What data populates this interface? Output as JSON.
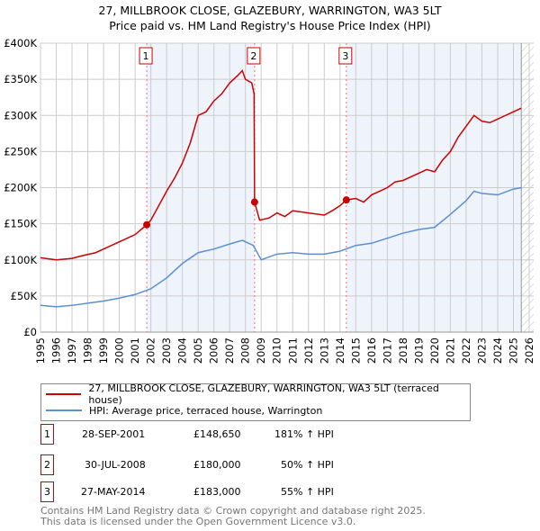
{
  "chart_data": {
    "type": "line",
    "title": "27, MILLBROOK CLOSE, GLAZEBURY, WARRINGTON, WA3 5LT",
    "subtitle": "Price paid vs. HM Land Registry's House Price Index (HPI)",
    "xlim": [
      1995,
      2026
    ],
    "ylim": [
      0,
      400000
    ],
    "yticks": [
      {
        "v": 0,
        "label": "£0"
      },
      {
        "v": 50000,
        "label": "£50K"
      },
      {
        "v": 100000,
        "label": "£100K"
      },
      {
        "v": 150000,
        "label": "£150K"
      },
      {
        "v": 200000,
        "label": "£200K"
      },
      {
        "v": 250000,
        "label": "£250K"
      },
      {
        "v": 300000,
        "label": "£300K"
      },
      {
        "v": 350000,
        "label": "£350K"
      },
      {
        "v": 400000,
        "label": "£400K"
      }
    ],
    "xticks": [
      "1995",
      "1996",
      "1997",
      "1998",
      "1999",
      "2000",
      "2001",
      "2002",
      "2003",
      "2004",
      "2005",
      "2006",
      "2007",
      "2008",
      "2009",
      "2010",
      "2011",
      "2012",
      "2013",
      "2014",
      "2015",
      "2016",
      "2017",
      "2018",
      "2019",
      "2020",
      "2021",
      "2022",
      "2023",
      "2024",
      "2025",
      "2026"
    ],
    "series": [
      {
        "name": "27, MILLBROOK CLOSE, GLAZEBURY, WARRINGTON, WA3 5LT (terraced house)",
        "color": "#cc0000",
        "x": [
          1995,
          1996,
          1997,
          1997.5,
          1998.5,
          1999,
          2000,
          2000.5,
          2001,
          2001.74,
          2002,
          2002.5,
          2003,
          2003.5,
          2004,
          2004.5,
          2005,
          2005.5,
          2006,
          2006.5,
          2007,
          2007.5,
          2007.8,
          2008,
          2008.4,
          2008.55,
          2008.58,
          2008.9,
          2009.5,
          2010,
          2010.5,
          2011,
          2012,
          2013,
          2013.5,
          2014,
          2014.4,
          2015,
          2015.5,
          2016,
          2016.5,
          2017,
          2017.5,
          2018,
          2018.5,
          2019,
          2019.5,
          2020,
          2020.5,
          2021,
          2021.5,
          2022,
          2022.5,
          2023,
          2023.5,
          2024,
          2024.5,
          2025,
          2025.5
        ],
        "y": [
          103000,
          100000,
          102000,
          105000,
          110000,
          115000,
          125000,
          130000,
          135000,
          148650,
          155000,
          175000,
          195000,
          213000,
          234000,
          262000,
          300000,
          305000,
          320000,
          330000,
          345000,
          355000,
          362000,
          350000,
          345000,
          330000,
          180000,
          155000,
          158000,
          165000,
          160000,
          168000,
          165000,
          162000,
          168000,
          175000,
          183000,
          185000,
          180000,
          190000,
          195000,
          200000,
          208000,
          210000,
          215000,
          220000,
          225000,
          222000,
          238000,
          250000,
          270000,
          285000,
          300000,
          292000,
          290000,
          295000,
          300000,
          305000,
          310000
        ]
      },
      {
        "name": "HPI: Average price, terraced house, Warrington",
        "color": "#5b8fd4",
        "x": [
          1995,
          1996,
          1997,
          1998,
          1999,
          2000,
          2001,
          2002,
          2003,
          2004,
          2005,
          2006,
          2007,
          2007.8,
          2008.5,
          2009,
          2010,
          2011,
          2012,
          2013,
          2014,
          2015,
          2016,
          2017,
          2018,
          2019,
          2020,
          2021,
          2022,
          2022.5,
          2023,
          2024,
          2025,
          2025.5
        ],
        "y": [
          37000,
          35000,
          37000,
          40000,
          43000,
          47000,
          52000,
          60000,
          75000,
          95000,
          110000,
          115000,
          122000,
          127000,
          120000,
          100000,
          108000,
          110000,
          108000,
          108000,
          112000,
          120000,
          123000,
          130000,
          137000,
          142000,
          145000,
          163000,
          182000,
          195000,
          192000,
          190000,
          198000,
          200000
        ]
      }
    ],
    "sales": [
      {
        "id": "1",
        "x": 2001.74,
        "y": 148650,
        "date": "28-SEP-2001",
        "price": "£148,650",
        "hpi": "181% ↑ HPI"
      },
      {
        "id": "2",
        "x": 2008.58,
        "y": 180000,
        "date": "30-JUL-2008",
        "price": "£180,000",
        "hpi": "50% ↑ HPI"
      },
      {
        "id": "3",
        "x": 2014.4,
        "y": 183000,
        "date": "27-MAY-2014",
        "price": "£183,000",
        "hpi": "55% ↑ HPI"
      }
    ],
    "forecast_start": 2025.5
  },
  "footer": {
    "line1": "Contains HM Land Registry data © Crown copyright and database right 2025.",
    "line2": "This data is licensed under the Open Government Licence v3.0."
  }
}
